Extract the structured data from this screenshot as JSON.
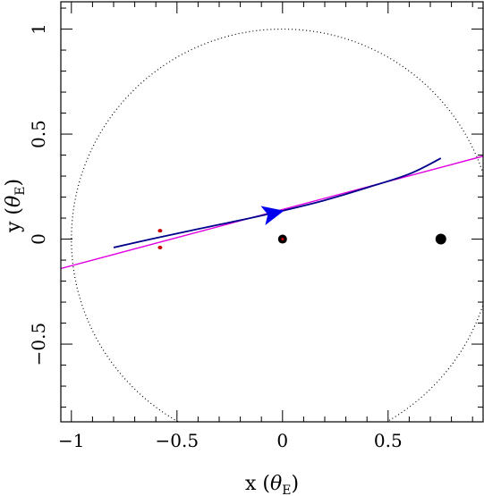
{
  "chart_data": {
    "type": "scatter",
    "title": "",
    "xlabel": {
      "main": "x (",
      "symbol": "θ",
      "subscript": "E",
      "close": ")"
    },
    "ylabel": {
      "main": "y (",
      "symbol": "θ",
      "subscript": "E",
      "close": ")"
    },
    "xlim": [
      -1.05,
      0.95
    ],
    "ylim": [
      -0.87,
      1.13
    ],
    "x_ticks": [
      {
        "value": -1,
        "label": "−1"
      },
      {
        "value": -0.5,
        "label": "−0.5"
      },
      {
        "value": 0,
        "label": "0"
      },
      {
        "value": 0.5,
        "label": "0.5"
      }
    ],
    "y_ticks": [
      {
        "value": -0.5,
        "label": "−0.5"
      },
      {
        "value": 0,
        "label": "0"
      },
      {
        "value": 0.5,
        "label": "0.5"
      },
      {
        "value": 1,
        "label": "1"
      }
    ],
    "x_minor_step": 0.1,
    "y_minor_step": 0.1,
    "grid": false,
    "einstein_ring": {
      "center": [
        0,
        0
      ],
      "radius": 1,
      "style": "dotted",
      "color": "#000000"
    },
    "lens_masses": [
      {
        "x": 0.0,
        "y": 0.0,
        "size": "small",
        "color": "#000000",
        "core_color": "#cc0000"
      },
      {
        "x": 0.75,
        "y": 0.0,
        "size": "large",
        "color": "#000000"
      }
    ],
    "caustics": [
      {
        "x": -0.58,
        "y": 0.04,
        "color": "#cc0000"
      },
      {
        "x": -0.58,
        "y": -0.04,
        "color": "#cc0000"
      }
    ],
    "straight_trajectory": {
      "color": "#e000e0",
      "points": [
        [
          -1.05,
          -0.14
        ],
        [
          0.95,
          0.395
        ]
      ]
    },
    "source_trajectory": {
      "color": "#00008b",
      "points": [
        [
          -0.8,
          -0.04
        ],
        [
          -0.6,
          0.005
        ],
        [
          -0.4,
          0.048
        ],
        [
          -0.2,
          0.09
        ],
        [
          0.0,
          0.135
        ],
        [
          0.2,
          0.185
        ],
        [
          0.4,
          0.245
        ],
        [
          0.6,
          0.31
        ],
        [
          0.75,
          0.385
        ]
      ]
    },
    "direction_arrow": {
      "x": -0.08,
      "y": 0.115,
      "dx": 0.09,
      "dy": 0.021,
      "color": "#0000ee"
    }
  }
}
